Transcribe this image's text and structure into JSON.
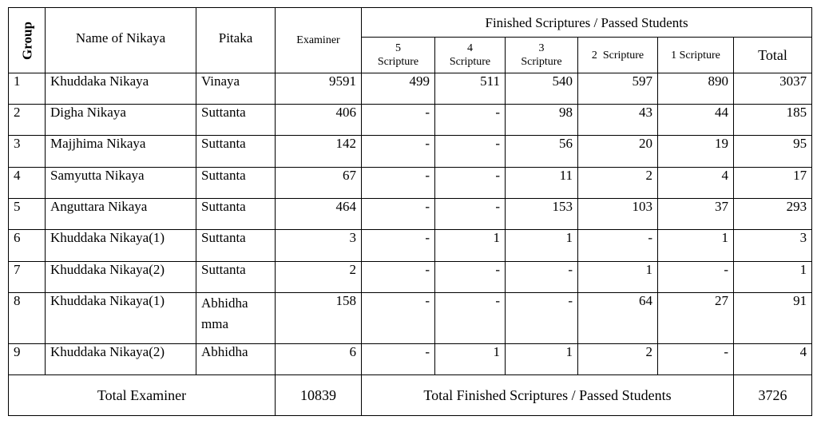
{
  "header": {
    "group": "Group",
    "name": "Name of Nikaya",
    "pitaka": "Pitaka",
    "examiner": "Examiner",
    "finished": "Finished Scriptures / Passed Students",
    "sub": [
      {
        "num": "5",
        "label": "Scripture"
      },
      {
        "num": "4",
        "label": "Scripture"
      },
      {
        "num": "3",
        "label": "Scripture"
      },
      {
        "label": "2  Scripture"
      },
      {
        "label": "1 Scripture"
      }
    ],
    "total": "Total"
  },
  "rows": [
    {
      "group": "1",
      "name": "Khuddaka Nikaya",
      "pitaka": "Vinaya",
      "examiner": "9591",
      "s5": "499",
      "s4": "511",
      "s3": "540",
      "s2": "597",
      "s1": "890",
      "total": "3037"
    },
    {
      "group": "2",
      "name": "Digha Nikaya",
      "pitaka": "Suttanta",
      "examiner": "406",
      "s5": "-",
      "s4": "-",
      "s3": "98",
      "s2": "43",
      "s1": "44",
      "total": "185"
    },
    {
      "group": "3",
      "name": "Majjhima Nikaya",
      "pitaka": "Suttanta",
      "examiner": "142",
      "s5": "-",
      "s4": "-",
      "s3": "56",
      "s2": "20",
      "s1": "19",
      "total": "95"
    },
    {
      "group": "4",
      "name": "Samyutta Nikaya",
      "pitaka": "Suttanta",
      "examiner": "67",
      "s5": "-",
      "s4": "-",
      "s3": "11",
      "s2": "2",
      "s1": "4",
      "total": "17"
    },
    {
      "group": "5",
      "name": "Anguttara Nikaya",
      "pitaka": "Suttanta",
      "examiner": "464",
      "s5": "-",
      "s4": "-",
      "s3": "153",
      "s2": "103",
      "s1": "37",
      "total": "293"
    },
    {
      "group": "6",
      "name": "Khuddaka Nikaya(1)",
      "pitaka": "Suttanta",
      "examiner": "3",
      "s5": "-",
      "s4": "1",
      "s3": "1",
      "s2": "-",
      "s1": "1",
      "total": "3"
    },
    {
      "group": "7",
      "name": "Khuddaka Nikaya(2)",
      "pitaka": "Suttanta",
      "examiner": "2",
      "s5": "-",
      "s4": "-",
      "s3": "-",
      "s2": "1",
      "s1": "-",
      "total": "1"
    },
    {
      "group": "8",
      "name": "Khuddaka Nikaya(1)",
      "pitaka": "Abhidha\nmma",
      "examiner": "158",
      "s5": "-",
      "s4": "-",
      "s3": "-",
      "s2": "64",
      "s1": "27",
      "total": "91"
    },
    {
      "group": "9",
      "name": "Khuddaka Nikaya(2)",
      "pitaka": "Abhidha",
      "examiner": "6",
      "s5": "-",
      "s4": "1",
      "s3": "1",
      "s2": "2",
      "s1": "-",
      "total": "4"
    }
  ],
  "footer": {
    "total_examiner_label": "Total Examiner",
    "total_examiner_value": "10839",
    "total_finished_label": "Total Finished Scriptures / Passed Students",
    "total_finished_value": "3726"
  }
}
